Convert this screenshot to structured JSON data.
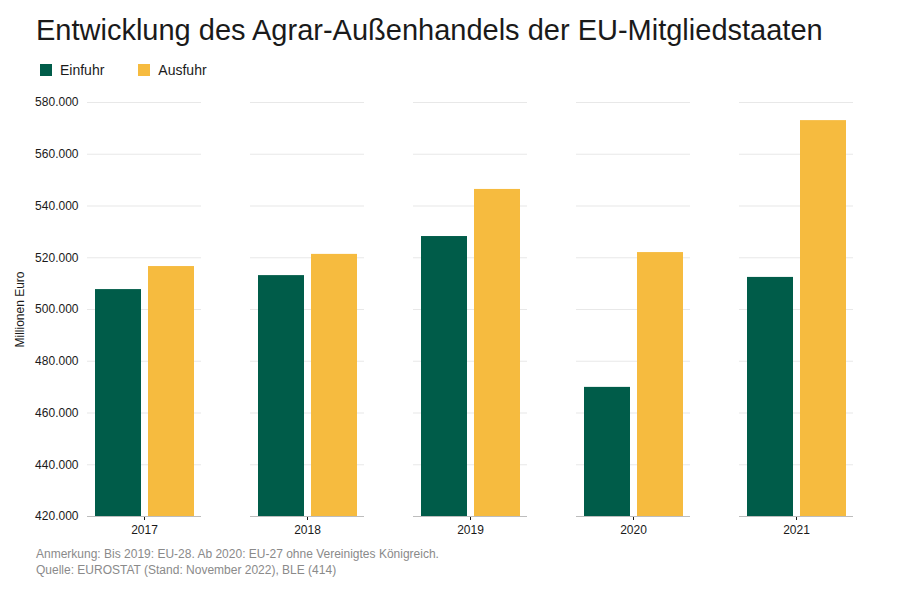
{
  "chart_data": {
    "type": "bar",
    "title": "Entwicklung des Agrar-Außenhandels der EU-Mitgliedstaaten",
    "ylabel": "Millionen Euro",
    "categories": [
      "2017",
      "2018",
      "2019",
      "2020",
      "2021"
    ],
    "series": [
      {
        "name": "Einfuhr",
        "color": "#005c49",
        "values": [
          507700,
          513100,
          528200,
          469900,
          512400
        ]
      },
      {
        "name": "Ausfuhr",
        "color": "#f6bb3f",
        "values": [
          516600,
          521300,
          546400,
          522000,
          573000
        ]
      }
    ],
    "ylim": [
      420000,
      580000
    ],
    "yticks": [
      {
        "value": 420000,
        "label": "420.000"
      },
      {
        "value": 440000,
        "label": "440.000"
      },
      {
        "value": 460000,
        "label": "460.000"
      },
      {
        "value": 480000,
        "label": "480.000"
      },
      {
        "value": 500000,
        "label": "500.000"
      },
      {
        "value": 520000,
        "label": "520.000"
      },
      {
        "value": 540000,
        "label": "540.000"
      },
      {
        "value": 560000,
        "label": "560.000"
      },
      {
        "value": 580000,
        "label": "580.000"
      }
    ],
    "grid": true,
    "legend": "top-left",
    "note": "Anmerkung: Bis 2019: EU-28. Ab 2020: EU-27 ohne Vereinigtes Königreich.",
    "source": "Quelle: EUROSTAT (Stand: November 2022), BLE (414)"
  }
}
